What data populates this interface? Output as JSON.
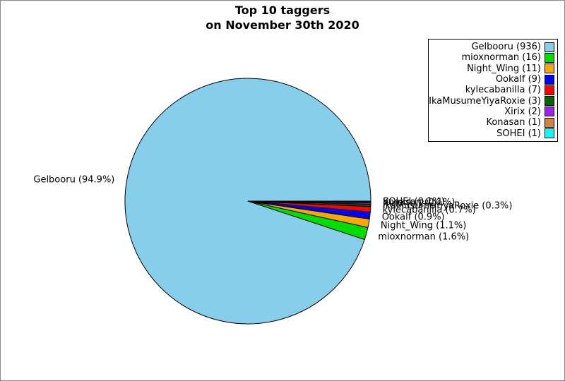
{
  "title": {
    "line1": "Top 10 taggers",
    "line2": "on November 30th 2020"
  },
  "chart_data": {
    "type": "pie",
    "title": "Top 10 taggers on November 30th 2020",
    "start_angle_deg": 0,
    "direction": "counterclockwise",
    "total": 986,
    "edge_color": "#000000",
    "legend_position": "upper-right",
    "slices": [
      {
        "label": "Gelbooru",
        "count": 936,
        "percent": 94.9,
        "pie_label": "Gelbooru (94.9%)",
        "legend_label": "Gelbooru (936)",
        "color": "#87CEEB"
      },
      {
        "label": "mioxnorman",
        "count": 16,
        "percent": 1.6,
        "pie_label": "mioxnorman (1.6%)",
        "legend_label": "mioxnorman (16)",
        "color": "#00DD00"
      },
      {
        "label": "Night_Wing",
        "count": 11,
        "percent": 1.1,
        "pie_label": "Night_Wing (1.1%)",
        "legend_label": "Night_Wing (11)",
        "color": "#FFA500"
      },
      {
        "label": "Ookalf",
        "count": 9,
        "percent": 0.9,
        "pie_label": "Ookalf (0.9%)",
        "legend_label": "Ookalf (9)",
        "color": "#0000FF"
      },
      {
        "label": "kylecabanilla",
        "count": 7,
        "percent": 0.7,
        "pie_label": "kylecabanilla (0.7%)",
        "legend_label": "kylecabanilla (7)",
        "color": "#FF0000"
      },
      {
        "label": "IkaMusumeYiyaRoxie",
        "count": 3,
        "percent": 0.3,
        "pie_label": "IkaMusumeYiyaRoxie (0.3%)",
        "legend_label": "IkaMusumeYiyaRoxie (3)",
        "color": "#006400"
      },
      {
        "label": "Xirix",
        "count": 2,
        "percent": 0.2,
        "pie_label": "Xirix (0.2%)",
        "legend_label": "Xirix (2)",
        "color": "#A020F0"
      },
      {
        "label": "Konasan",
        "count": 1,
        "percent": 0.1,
        "pie_label": "Konasan (0.1%)",
        "legend_label": "Konasan (1)",
        "color": "#CD853F"
      },
      {
        "label": "SOHEI",
        "count": 1,
        "percent": 0.1,
        "pie_label": "SOHEI (0.1%)",
        "legend_label": "SOHEI (1)",
        "color": "#00FFFF"
      }
    ]
  }
}
